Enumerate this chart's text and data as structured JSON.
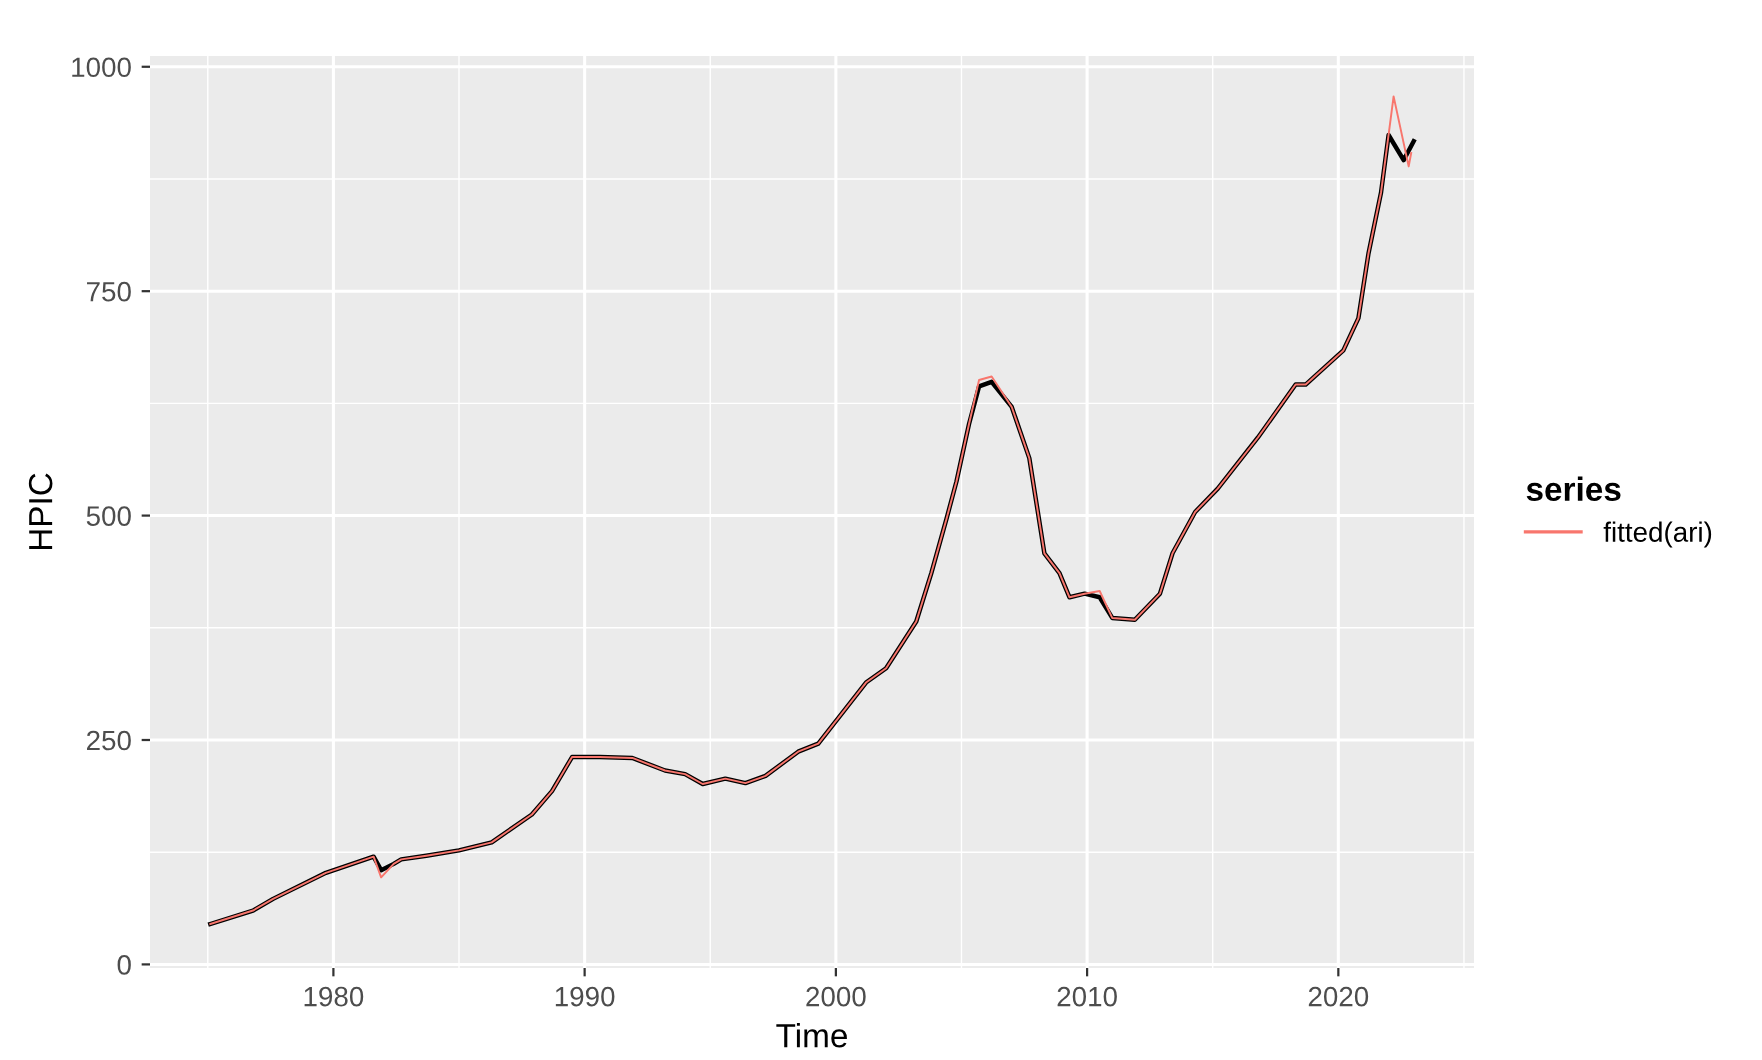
{
  "chart_data": {
    "type": "line",
    "xlabel": "Time",
    "ylabel": "HPIC",
    "legend_title": "series",
    "legend": "right",
    "grid": true,
    "xlim": [
      1972.7,
      2025.4
    ],
    "ylim": [
      -4,
      1012
    ],
    "xticks": [
      1980,
      1990,
      2000,
      2010,
      2020
    ],
    "yticks": [
      0,
      250,
      500,
      750,
      1000
    ],
    "series": [
      {
        "color": "#000000",
        "x": [
          1975.1,
          1976.8,
          1977.6,
          1979.7,
          1981.6,
          1981.9,
          1982.4,
          1982.7,
          1983.7,
          1985.0,
          1986.3,
          1987.9,
          1988.7,
          1989.5,
          1990.6,
          1991.9,
          1993.2,
          1994.0,
          1994.7,
          1995.6,
          1996.4,
          1997.2,
          1998.5,
          1999.3,
          2001.2,
          2002.0,
          2003.2,
          2003.8,
          2004.4,
          2004.8,
          2005.3,
          2005.7,
          2006.2,
          2007.0,
          2007.7,
          2008.3,
          2008.9,
          2009.3,
          2009.9,
          2010.5,
          2011.0,
          2011.9,
          2012.9,
          2013.4,
          2014.3,
          2015.2,
          2016.8,
          2018.3,
          2018.7,
          2020.2,
          2020.8,
          2021.2,
          2021.7,
          2022.0,
          2022.6,
          2023.0
        ],
        "values": [
          45,
          60,
          73,
          102,
          120,
          105,
          112,
          117,
          121,
          127,
          136,
          167,
          193,
          231,
          231,
          230,
          216,
          212,
          201,
          207,
          202,
          210,
          237,
          246,
          314,
          330,
          382,
          436,
          496,
          538,
          602,
          644,
          649,
          621,
          564,
          458,
          436,
          409,
          413,
          409,
          386,
          384,
          413,
          458,
          504,
          530,
          587,
          646,
          646,
          684,
          720,
          792,
          860,
          924,
          896,
          917
        ]
      },
      {
        "name": "fitted(ari)",
        "color": "#f8766d",
        "x": [
          1975.1,
          1976.8,
          1977.6,
          1979.7,
          1981.6,
          1981.9,
          1982.4,
          1982.7,
          1983.7,
          1985.0,
          1986.3,
          1987.9,
          1988.7,
          1989.5,
          1990.6,
          1991.9,
          1993.2,
          1994.0,
          1994.7,
          1995.6,
          1996.4,
          1997.2,
          1998.5,
          1999.3,
          2001.2,
          2002.0,
          2003.2,
          2003.8,
          2004.4,
          2004.8,
          2005.3,
          2005.7,
          2006.2,
          2007.0,
          2007.7,
          2008.3,
          2008.9,
          2009.3,
          2009.9,
          2010.5,
          2011.0,
          2011.9,
          2012.9,
          2013.4,
          2014.3,
          2015.2,
          2016.8,
          2018.3,
          2018.7,
          2020.2,
          2020.8,
          2021.2,
          2021.7,
          2022.2,
          2022.8,
          2022.9
        ],
        "values": [
          45,
          60,
          73,
          102,
          120,
          97,
          112,
          117,
          121,
          127,
          136,
          167,
          193,
          231,
          231,
          230,
          216,
          212,
          201,
          207,
          202,
          210,
          237,
          246,
          314,
          330,
          382,
          436,
          496,
          538,
          602,
          651,
          655,
          621,
          564,
          458,
          436,
          409,
          413,
          416,
          386,
          384,
          413,
          458,
          504,
          530,
          587,
          646,
          646,
          684,
          720,
          792,
          860,
          967,
          889,
          904
        ]
      }
    ]
  }
}
